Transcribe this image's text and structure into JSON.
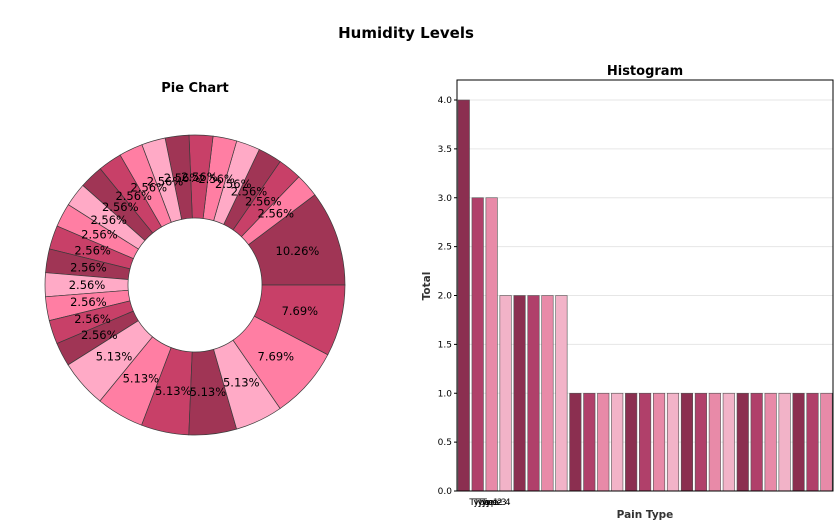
{
  "chart_data": [
    {
      "type": "pie",
      "figure_title": "Humidity Levels",
      "title": "Pie Chart",
      "donut": true,
      "slices": [
        10.26,
        2.56,
        2.56,
        2.56,
        2.56,
        2.56,
        2.56,
        2.56,
        2.56,
        2.56,
        2.56,
        2.56,
        2.56,
        2.56,
        2.56,
        2.56,
        2.56,
        2.56,
        2.56,
        2.56,
        5.13,
        5.13,
        5.13,
        5.13,
        5.13,
        7.69,
        7.69
      ],
      "labels": [
        "10.26%",
        "2.56%",
        "2.56%",
        "2.56%",
        "2.56%",
        "2.56%",
        "2.56%",
        "2.56%",
        "2.56%",
        "2.56%",
        "2.56%",
        "2.56%",
        "2.56%",
        "2.56%",
        "2.56%",
        "2.56%",
        "2.56%",
        "2.56%",
        "2.56%",
        "2.56%",
        "5.13%",
        "5.13%",
        "5.13%",
        "5.13%",
        "5.13%",
        "7.69%",
        "7.69%"
      ],
      "colors": [
        "#a03555",
        "#ff7ea3",
        "#c84068",
        "#a03555",
        "#ffaac6",
        "#ff7ea3",
        "#c84068",
        "#a03555",
        "#ffaac6",
        "#ff7ea3",
        "#c84068",
        "#a03555",
        "#ffaac6",
        "#ff7ea3",
        "#c84068",
        "#a03555",
        "#ffaac6",
        "#ff7ea3",
        "#c84068",
        "#a03555",
        "#ffaac6",
        "#ff7ea3",
        "#c84068",
        "#a03555",
        "#ffaac6",
        "#ff7ea3",
        "#c84068"
      ]
    },
    {
      "type": "bar",
      "title": "Histogram",
      "xlabel": "Pain Type",
      "ylabel": "Total",
      "ylim": [
        0,
        4.0
      ],
      "yticks": [
        "0.0",
        "0.5",
        "1.0",
        "1.5",
        "2.0",
        "2.5",
        "3.0",
        "3.5",
        "4.0"
      ],
      "values": [
        4,
        3,
        3,
        2,
        2,
        2,
        2,
        2,
        1,
        1,
        1,
        1,
        1,
        1,
        1,
        1,
        1,
        1,
        1,
        1,
        1,
        1,
        1,
        1,
        1,
        1,
        1
      ],
      "colors": [
        "#8b2f50",
        "#b0406a",
        "#e88aa8",
        "#f2b3c8"
      ],
      "visible_xticks": [
        "Type 1",
        "Type 2",
        "Type 3",
        "Type 4"
      ],
      "grid": true
    }
  ]
}
